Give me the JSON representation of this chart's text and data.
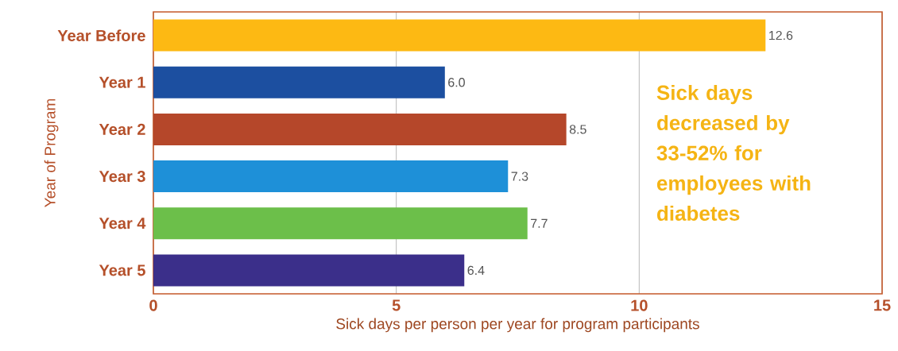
{
  "chart_data": {
    "type": "bar",
    "orientation": "horizontal",
    "categories": [
      "Year Before",
      "Year 1",
      "Year 2",
      "Year 3",
      "Year 4",
      "Year 5"
    ],
    "values": [
      12.6,
      6.0,
      8.5,
      7.3,
      7.7,
      6.4
    ],
    "value_labels": [
      "12.6",
      "6.0",
      "8.5",
      "7.3",
      "7.7",
      "6.4"
    ],
    "colors": [
      "#fdb913",
      "#1c4fa0",
      "#b5472a",
      "#1e90d8",
      "#6cbf4a",
      "#3b2f8a"
    ],
    "xlim": [
      0,
      15
    ],
    "xticks": [
      0,
      5,
      10,
      15
    ],
    "grid": "x",
    "xlabel": "Sick days per person per year for program participants",
    "ylabel": "Year of Program",
    "annotations": [
      "Sick days decreased by 33-52% for employees with diabetes"
    ]
  }
}
